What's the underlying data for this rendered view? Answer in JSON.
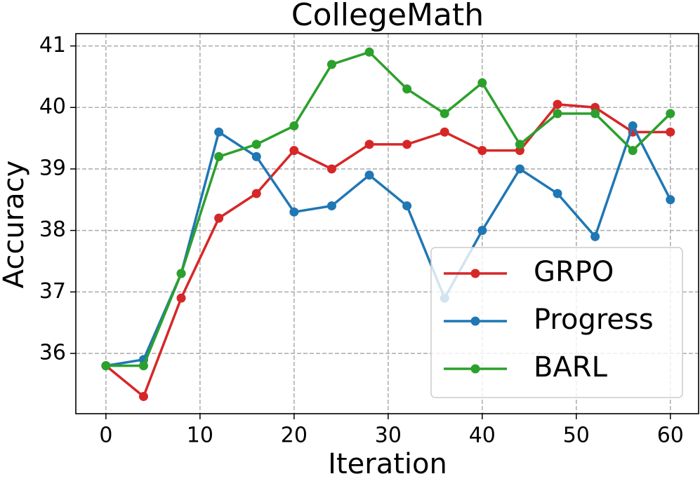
{
  "chart_data": {
    "type": "line",
    "title": "CollegeMath",
    "xlabel": "Iteration",
    "ylabel": "Accuracy",
    "x": [
      0,
      4,
      8,
      12,
      16,
      20,
      24,
      28,
      32,
      36,
      40,
      44,
      48,
      52,
      56,
      60
    ],
    "series": [
      {
        "name": "GRPO",
        "color": "#d62728",
        "values": [
          35.8,
          35.3,
          36.9,
          38.2,
          38.6,
          39.3,
          39.0,
          39.4,
          39.4,
          39.6,
          39.3,
          39.3,
          40.05,
          40.0,
          39.6,
          39.6
        ]
      },
      {
        "name": "Progress",
        "color": "#1f77b4",
        "values": [
          35.8,
          35.9,
          37.3,
          39.6,
          39.2,
          38.3,
          38.4,
          38.9,
          38.4,
          36.9,
          38.0,
          39.0,
          38.6,
          37.9,
          39.7,
          38.5
        ]
      },
      {
        "name": "BARL",
        "color": "#2ca02c",
        "values": [
          35.8,
          35.8,
          37.3,
          39.2,
          39.4,
          39.7,
          40.7,
          40.9,
          40.3,
          39.9,
          40.4,
          39.4,
          39.9,
          39.9,
          39.3,
          39.9
        ]
      }
    ],
    "xlim": [
      -3.2,
      63.0
    ],
    "ylim": [
      35.02,
      41.2
    ],
    "xticks": [
      0,
      10,
      20,
      30,
      40,
      50,
      60
    ],
    "yticks": [
      36,
      37,
      38,
      39,
      40,
      41
    ],
    "grid": true,
    "legend": "lower right"
  }
}
